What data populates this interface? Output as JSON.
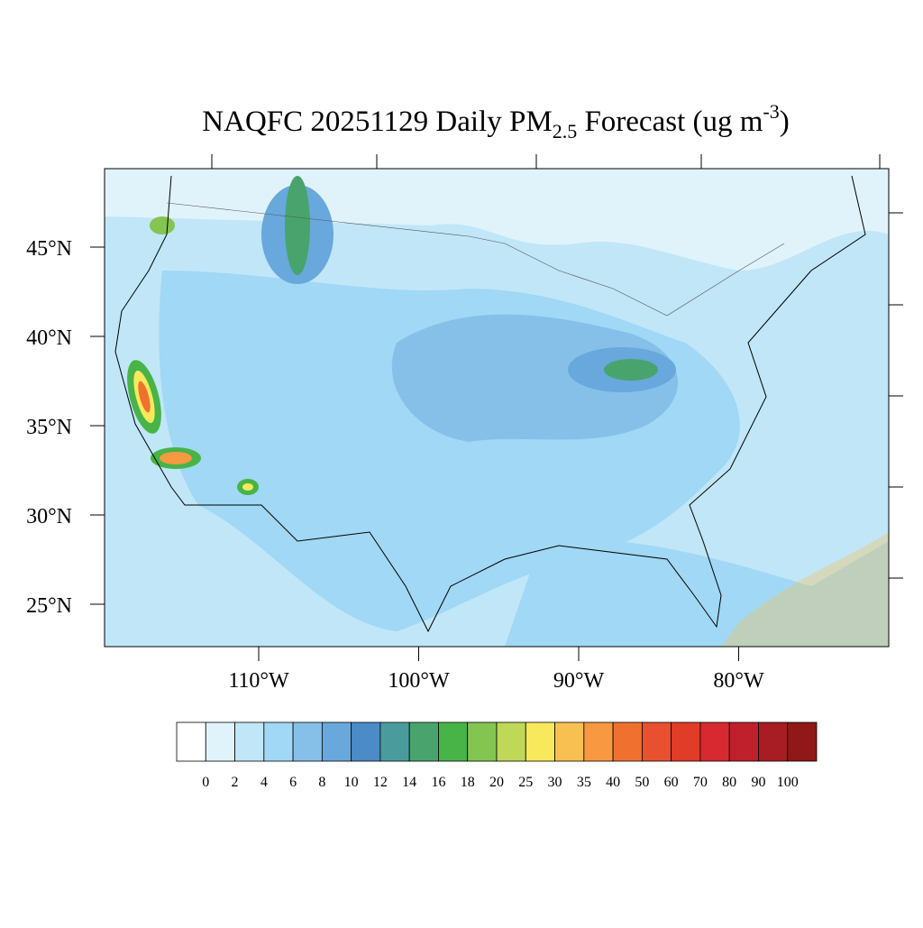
{
  "title": {
    "main": "NAQFC 20251129 Daily PM",
    "sub": "2.5",
    "middle": " Forecast (ug m",
    "sup": "-3",
    "end": ")"
  },
  "map": {
    "lat_ticks": [
      {
        "value": 45,
        "label": "45°N"
      },
      {
        "value": 40,
        "label": "40°N"
      },
      {
        "value": 35,
        "label": "35°N"
      },
      {
        "value": 30,
        "label": "30°N"
      },
      {
        "value": 25,
        "label": "25°N"
      }
    ],
    "lon_ticks": [
      {
        "value": -110,
        "label": "110°W"
      },
      {
        "value": -100,
        "label": "100°W"
      },
      {
        "value": -90,
        "label": "90°W"
      },
      {
        "value": -80,
        "label": "80°W"
      }
    ]
  },
  "colorbar": {
    "levels": [
      0,
      2,
      4,
      6,
      8,
      10,
      12,
      14,
      16,
      18,
      20,
      25,
      30,
      35,
      40,
      50,
      60,
      70,
      80,
      90,
      100
    ],
    "colors": [
      "#ffffff",
      "#e0f3fb",
      "#c0e6f8",
      "#a0d8f5",
      "#86c0e8",
      "#68a8dc",
      "#4a8bc8",
      "#4a9c9c",
      "#48a46c",
      "#48b448",
      "#84c450",
      "#c0d858",
      "#f8e85c",
      "#f8c050",
      "#f89840",
      "#f07030",
      "#e85030",
      "#e03c28",
      "#d82830",
      "#c0202c",
      "#a81c24",
      "#901818"
    ]
  }
}
